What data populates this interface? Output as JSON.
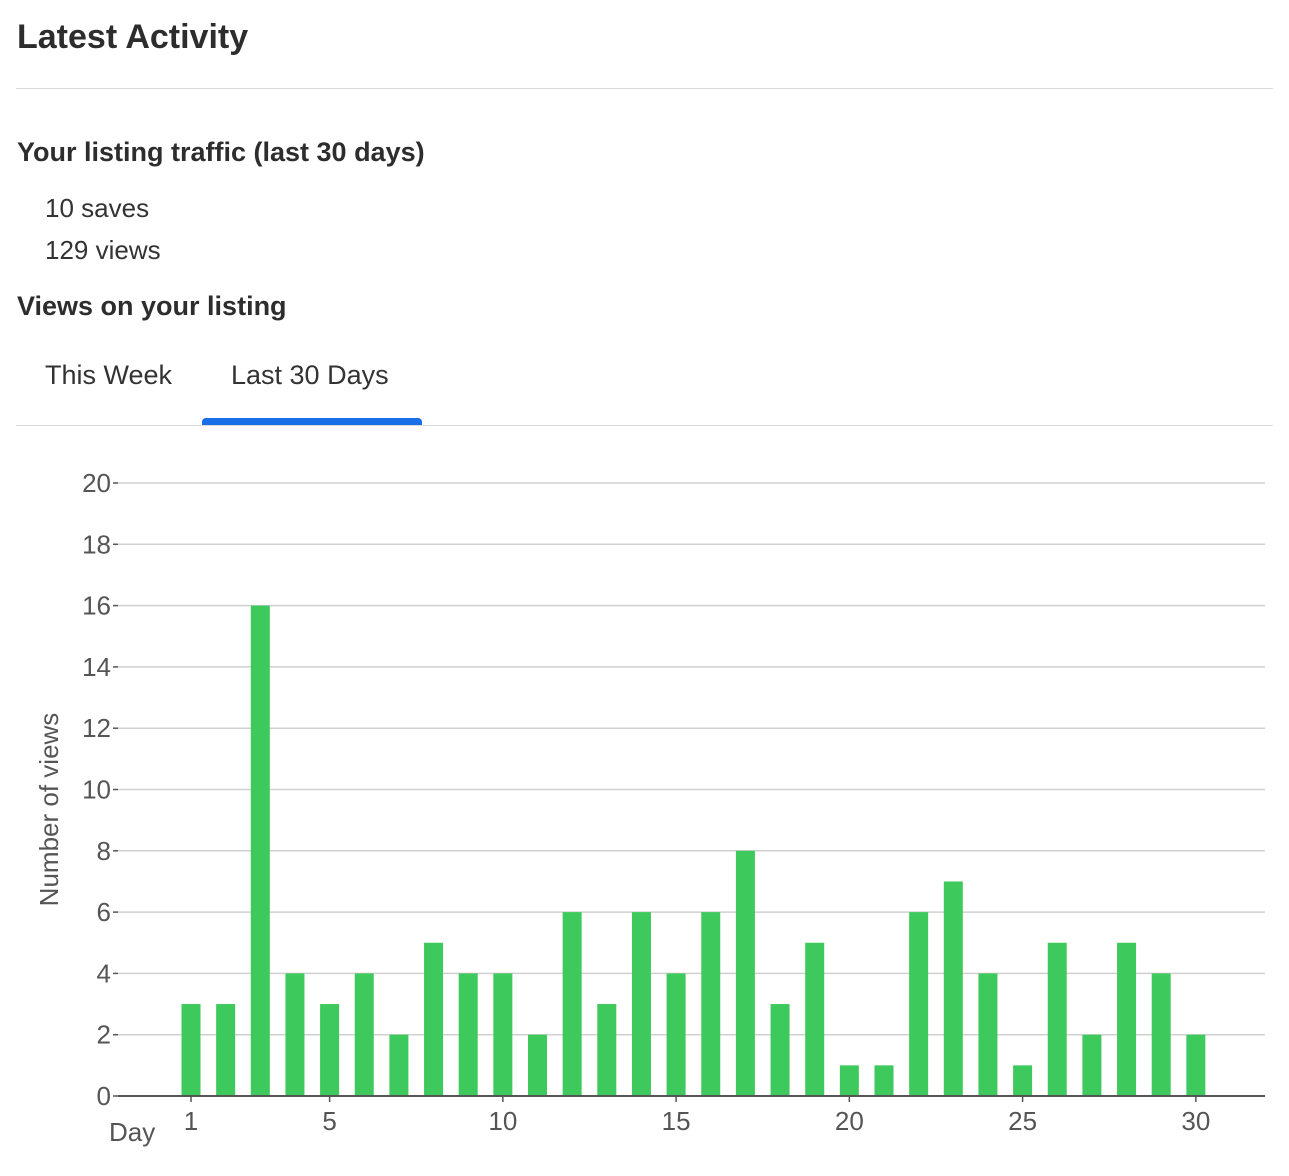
{
  "header": {
    "title": "Latest Activity"
  },
  "traffic": {
    "heading": "Your listing traffic (last 30 days)",
    "saves": "10 saves",
    "views": "129 views"
  },
  "views_section": {
    "heading": "Views on your listing",
    "tabs": [
      {
        "label": "This Week",
        "active": false
      },
      {
        "label": "Last 30 Days",
        "active": true
      }
    ]
  },
  "colors": {
    "bar": "#3ec95c",
    "tab_indicator": "#1a6fe8",
    "grid": "#d0d0d0"
  },
  "chart_data": {
    "type": "bar",
    "xlabel": "Day",
    "ylabel": "Number of views",
    "ylim": [
      0,
      20
    ],
    "yticks": [
      0,
      2,
      4,
      6,
      8,
      10,
      12,
      14,
      16,
      18,
      20
    ],
    "xticks": [
      1,
      5,
      10,
      15,
      20,
      25,
      30
    ],
    "grid": true,
    "categories": [
      1,
      2,
      3,
      4,
      5,
      6,
      7,
      8,
      9,
      10,
      11,
      12,
      13,
      14,
      15,
      16,
      17,
      18,
      19,
      20,
      21,
      22,
      23,
      24,
      25,
      26,
      27,
      28,
      29,
      30
    ],
    "values": [
      3,
      3,
      16,
      4,
      3,
      4,
      2,
      5,
      4,
      4,
      2,
      6,
      3,
      6,
      4,
      6,
      8,
      3,
      5,
      1,
      1,
      6,
      7,
      4,
      1,
      5,
      2,
      5,
      4,
      2
    ]
  }
}
